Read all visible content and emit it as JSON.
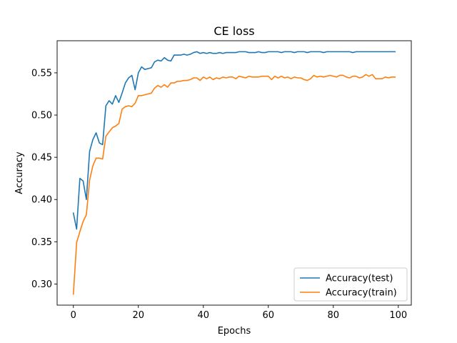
{
  "chart_data": {
    "type": "line",
    "title": "CE loss",
    "xlabel": "Epochs",
    "ylabel": "Accuracy",
    "xlim": [
      -5,
      104
    ],
    "ylim": [
      0.275,
      0.588
    ],
    "xticks": [
      0,
      20,
      40,
      60,
      80,
      100
    ],
    "yticks": [
      0.3,
      0.35,
      0.4,
      0.45,
      0.5,
      0.55
    ],
    "xtick_labels": [
      "0",
      "20",
      "40",
      "60",
      "80",
      "100"
    ],
    "ytick_labels": [
      "0.30",
      "0.35",
      "0.40",
      "0.45",
      "0.50",
      "0.55"
    ],
    "grid": false,
    "legend_position": "lower-right",
    "series": [
      {
        "name": "Accuracy(test)",
        "color": "#1f77b4",
        "values": [
          0.384,
          0.365,
          0.425,
          0.422,
          0.4,
          0.457,
          0.471,
          0.479,
          0.467,
          0.465,
          0.511,
          0.517,
          0.513,
          0.523,
          0.515,
          0.526,
          0.538,
          0.544,
          0.547,
          0.53,
          0.55,
          0.557,
          0.554,
          0.555,
          0.556,
          0.563,
          0.565,
          0.564,
          0.568,
          0.565,
          0.564,
          0.571,
          0.571,
          0.571,
          0.572,
          0.571,
          0.572,
          0.574,
          0.575,
          0.573,
          0.574,
          0.573,
          0.574,
          0.573,
          0.573,
          0.574,
          0.573,
          0.574,
          0.574,
          0.574,
          0.574,
          0.575,
          0.575,
          0.575,
          0.574,
          0.574,
          0.574,
          0.575,
          0.574,
          0.574,
          0.575,
          0.575,
          0.575,
          0.575,
          0.574,
          0.575,
          0.575,
          0.575,
          0.574,
          0.575,
          0.575,
          0.575,
          0.574,
          0.575,
          0.575,
          0.575,
          0.575,
          0.574,
          0.575,
          0.575,
          0.575,
          0.575,
          0.575,
          0.575,
          0.575,
          0.575,
          0.574,
          0.575,
          0.575,
          0.575,
          0.575,
          0.575,
          0.575,
          0.575,
          0.575,
          0.575,
          0.575,
          0.575,
          0.575,
          0.575
        ]
      },
      {
        "name": "Accuracy(train)",
        "color": "#ff7f0e",
        "values": [
          0.288,
          0.349,
          0.362,
          0.374,
          0.382,
          0.423,
          0.44,
          0.449,
          0.449,
          0.448,
          0.475,
          0.48,
          0.485,
          0.487,
          0.49,
          0.507,
          0.51,
          0.511,
          0.51,
          0.514,
          0.523,
          0.523,
          0.524,
          0.525,
          0.526,
          0.532,
          0.535,
          0.533,
          0.536,
          0.533,
          0.538,
          0.538,
          0.54,
          0.54,
          0.541,
          0.541,
          0.542,
          0.544,
          0.544,
          0.541,
          0.545,
          0.543,
          0.545,
          0.542,
          0.544,
          0.543,
          0.545,
          0.544,
          0.545,
          0.545,
          0.543,
          0.546,
          0.545,
          0.544,
          0.546,
          0.545,
          0.545,
          0.545,
          0.546,
          0.546,
          0.546,
          0.542,
          0.546,
          0.544,
          0.546,
          0.544,
          0.545,
          0.543,
          0.545,
          0.544,
          0.544,
          0.542,
          0.541,
          0.543,
          0.547,
          0.545,
          0.546,
          0.545,
          0.546,
          0.547,
          0.546,
          0.545,
          0.547,
          0.547,
          0.545,
          0.544,
          0.546,
          0.546,
          0.544,
          0.545,
          0.548,
          0.546,
          0.548,
          0.543,
          0.543,
          0.543,
          0.545,
          0.544,
          0.545,
          0.545
        ]
      }
    ]
  }
}
